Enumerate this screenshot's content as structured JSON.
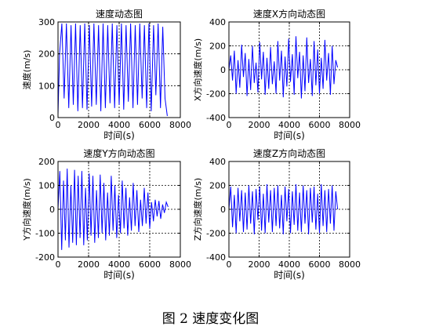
{
  "caption": "图 2  速度变化图",
  "chart_data": [
    {
      "type": "line",
      "title": "速度动态图",
      "xlabel": "时间(s)",
      "ylabel": "速度(m/s)",
      "xlim": [
        0,
        8000
      ],
      "ylim": [
        0,
        300
      ],
      "xticks": [
        0,
        2000,
        4000,
        6000,
        8000
      ],
      "yticks": [
        0,
        100,
        200,
        300
      ],
      "xtick_labels": [
        "0",
        "2000",
        "4000",
        "6000",
        "8000"
      ],
      "ytick_labels": [
        "0",
        "100",
        "200",
        "300"
      ],
      "grid": true,
      "color": "#0000ff",
      "series": [
        {
          "x": [
            0,
            100,
            250,
            400,
            550,
            700,
            850,
            1000,
            1150,
            1300,
            1450,
            1600,
            1750,
            1900,
            2050,
            2200,
            2350,
            2500,
            2650,
            2800,
            2950,
            3100,
            3250,
            3400,
            3550,
            3700,
            3850,
            4000,
            4150,
            4300,
            4450,
            4600,
            4750,
            4900,
            5050,
            5200,
            5350,
            5500,
            5650,
            5800,
            5950,
            6100,
            6250,
            6400,
            6550,
            6700,
            6850,
            7000,
            7150
          ],
          "y": [
            10,
            200,
            295,
            60,
            295,
            30,
            290,
            40,
            295,
            20,
            290,
            30,
            295,
            25,
            290,
            35,
            295,
            40,
            290,
            20,
            295,
            30,
            290,
            45,
            295,
            30,
            290,
            40,
            295,
            25,
            290,
            50,
            295,
            30,
            290,
            40,
            295,
            60,
            290,
            30,
            295,
            20,
            290,
            70,
            295,
            30,
            285,
            60,
            5
          ]
        }
      ]
    },
    {
      "type": "line",
      "title": "速度X方向动态图",
      "xlabel": "时间(s)",
      "ylabel": "X方向速度(m/s)",
      "xlim": [
        0,
        8000
      ],
      "ylim": [
        -400,
        400
      ],
      "xticks": [
        0,
        2000,
        4000,
        6000,
        8000
      ],
      "yticks": [
        -400,
        -200,
        0,
        200,
        400
      ],
      "xtick_labels": [
        "0",
        "2000",
        "4000",
        "6000",
        "8000"
      ],
      "ytick_labels": [
        "-400",
        "-200",
        "0",
        "200",
        "400"
      ],
      "grid": true,
      "color": "#0000ff",
      "series": [
        {
          "x": [
            0,
            120,
            240,
            360,
            480,
            600,
            720,
            840,
            960,
            1080,
            1200,
            1320,
            1440,
            1560,
            1680,
            1800,
            1920,
            2040,
            2160,
            2280,
            2400,
            2520,
            2640,
            2760,
            2880,
            3000,
            3120,
            3240,
            3360,
            3480,
            3600,
            3720,
            3840,
            3960,
            4080,
            4200,
            4320,
            4440,
            4560,
            4680,
            4800,
            4920,
            5040,
            5160,
            5280,
            5400,
            5520,
            5640,
            5760,
            5880,
            6000,
            6120,
            6240,
            6360,
            6480,
            6600,
            6720,
            6840,
            6960,
            7080,
            7200
          ],
          "y": [
            0,
            120,
            -90,
            160,
            -200,
            80,
            -150,
            210,
            -60,
            140,
            -220,
            90,
            -170,
            200,
            -110,
            60,
            -190,
            230,
            -80,
            150,
            -210,
            100,
            -160,
            190,
            -120,
            70,
            -200,
            240,
            -90,
            160,
            -230,
            110,
            -140,
            260,
            -100,
            130,
            -210,
            280,
            -70,
            150,
            -240,
            120,
            -180,
            270,
            -110,
            90,
            -220,
            240,
            -130,
            170,
            -200,
            100,
            -160,
            250,
            -90,
            140,
            -210,
            200,
            -120,
            80,
            20
          ]
        }
      ]
    },
    {
      "type": "line",
      "title": "速度Y方向动态图",
      "xlabel": "时间(s)",
      "ylabel": "Y方向速度(m/s)",
      "xlim": [
        0,
        8000
      ],
      "ylim": [
        -200,
        200
      ],
      "xticks": [
        0,
        2000,
        4000,
        6000,
        8000
      ],
      "yticks": [
        -200,
        -100,
        0,
        100,
        200
      ],
      "xtick_labels": [
        "0",
        "2000",
        "4000",
        "6000",
        "8000"
      ],
      "ytick_labels": [
        "-200",
        "-100",
        "0",
        "100",
        "200"
      ],
      "grid": true,
      "color": "#0000ff",
      "series": [
        {
          "x": [
            0,
            120,
            240,
            360,
            480,
            600,
            720,
            840,
            960,
            1080,
            1200,
            1320,
            1440,
            1560,
            1680,
            1800,
            1920,
            2040,
            2160,
            2280,
            2400,
            2520,
            2640,
            2760,
            2880,
            3000,
            3120,
            3240,
            3360,
            3480,
            3600,
            3720,
            3840,
            3960,
            4080,
            4200,
            4320,
            4440,
            4560,
            4680,
            4800,
            4920,
            5040,
            5160,
            5280,
            5400,
            5520,
            5640,
            5760,
            5880,
            6000,
            6120,
            6240,
            6360,
            6480,
            6600,
            6720,
            6840,
            6960,
            7080,
            7200
          ],
          "y": [
            0,
            160,
            -170,
            120,
            -130,
            170,
            -160,
            100,
            -140,
            165,
            -150,
            140,
            -120,
            160,
            -150,
            90,
            -130,
            150,
            -110,
            140,
            -140,
            80,
            -120,
            145,
            -100,
            110,
            -130,
            70,
            -110,
            140,
            -90,
            100,
            -120,
            60,
            -100,
            120,
            -80,
            90,
            -110,
            50,
            -90,
            110,
            -70,
            80,
            -95,
            40,
            -70,
            90,
            -60,
            70,
            -80,
            30,
            -50,
            40,
            -30,
            35,
            -40,
            20,
            -15,
            30,
            10
          ]
        }
      ]
    },
    {
      "type": "line",
      "title": "速度Z方向动态图",
      "xlabel": "时间(s)",
      "ylabel": "Z方向速度(m/s)",
      "xlim": [
        0,
        8000
      ],
      "ylim": [
        -400,
        400
      ],
      "xticks": [
        0,
        2000,
        4000,
        6000,
        8000
      ],
      "yticks": [
        -400,
        -200,
        0,
        200,
        400
      ],
      "xtick_labels": [
        "0",
        "2000",
        "4000",
        "6000",
        "8000"
      ],
      "ytick_labels": [
        "-400",
        "-200",
        "0",
        "200",
        "400"
      ],
      "grid": true,
      "color": "#0000ff",
      "series": [
        {
          "x": [
            0,
            120,
            240,
            360,
            480,
            600,
            720,
            840,
            960,
            1080,
            1200,
            1320,
            1440,
            1560,
            1680,
            1800,
            1920,
            2040,
            2160,
            2280,
            2400,
            2520,
            2640,
            2760,
            2880,
            3000,
            3120,
            3240,
            3360,
            3480,
            3600,
            3720,
            3840,
            3960,
            4080,
            4200,
            4320,
            4440,
            4560,
            4680,
            4800,
            4920,
            5040,
            5160,
            5280,
            5400,
            5520,
            5640,
            5760,
            5880,
            6000,
            6120,
            6240,
            6360,
            6480,
            6600,
            6720,
            6840,
            6960,
            7080,
            7200
          ],
          "y": [
            0,
            190,
            -150,
            120,
            -200,
            180,
            -100,
            160,
            -190,
            140,
            -170,
            200,
            -120,
            150,
            -210,
            170,
            -90,
            190,
            -180,
            130,
            -200,
            210,
            -110,
            160,
            -190,
            180,
            -140,
            200,
            -160,
            120,
            -210,
            190,
            -100,
            170,
            -200,
            150,
            -130,
            210,
            -180,
            140,
            -190,
            200,
            -120,
            160,
            -210,
            180,
            -110,
            190,
            -170,
            130,
            -200,
            210,
            -140,
            160,
            -190,
            170,
            -120,
            200,
            -180,
            150,
            0
          ]
        }
      ]
    }
  ]
}
